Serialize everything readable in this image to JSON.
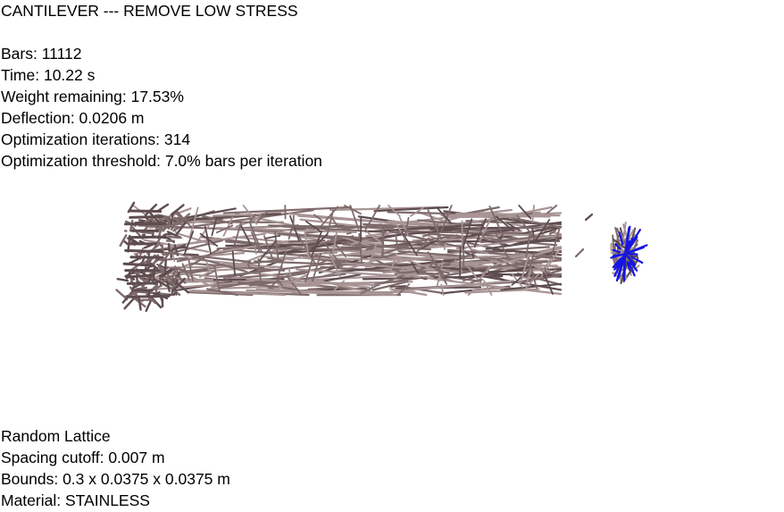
{
  "header": {
    "title": "CANTILEVER --- REMOVE LOW STRESS"
  },
  "stats": [
    "Bars: 11112",
    "Time: 10.22 s",
    "Weight remaining: 17.53%",
    "Deflection: 0.0206 m",
    "Optimization iterations: 314",
    "Optimization threshold: 7.0% bars per iteration"
  ],
  "footer": [
    "Random Lattice",
    "Spacing cutoff: 0.007 m",
    "Bounds: 0.3 x 0.0375 x 0.0375 m",
    "Material: STAINLESS"
  ],
  "colors": {
    "background": "#ffffff",
    "text": "#000000",
    "bar": "#7e6a6a",
    "bar_dark": "#5e4c4e",
    "bar_light": "#a89494",
    "load": "#1414e6"
  }
}
